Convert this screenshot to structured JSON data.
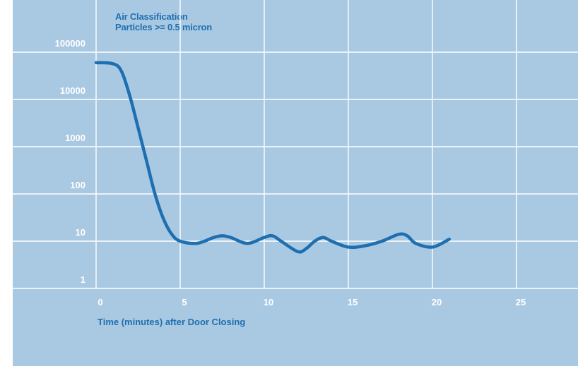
{
  "chart_data": {
    "type": "line",
    "title": "Air Classification",
    "subtitle": "Particles >= 0.5 micron",
    "xlabel": "Time (minutes) after Door Closing",
    "ylabel": "",
    "y_scale": "log",
    "xlim": [
      0,
      25
    ],
    "ylim": [
      1,
      100000
    ],
    "x_ticks": [
      "0",
      "5",
      "10",
      "15",
      "20",
      "25"
    ],
    "y_ticks": [
      "1",
      "10",
      "100",
      "1000",
      "10000",
      "100000"
    ],
    "grid": true,
    "colors": {
      "background": "#a9c9e3",
      "line": "#1f6fb0",
      "grid": "#ffffff",
      "title": "#1f6fb0"
    },
    "series": [
      {
        "x": [
          0,
          1,
          1.5,
          2,
          2.5,
          3,
          3.5,
          4,
          4.5,
          5,
          6,
          7,
          7.5,
          8,
          9,
          10,
          10.5,
          11,
          12,
          12.5,
          13,
          13.5,
          14,
          15,
          16,
          17,
          18,
          18.5,
          19,
          20,
          21
        ],
        "y": [
          60000,
          57000,
          40000,
          12000,
          2500,
          500,
          100,
          30,
          14,
          10,
          9,
          12,
          13,
          12,
          9,
          12,
          13,
          10,
          6,
          7,
          10,
          12,
          10,
          7.5,
          8,
          10,
          14,
          13,
          9,
          7.5,
          11
        ]
      }
    ]
  }
}
